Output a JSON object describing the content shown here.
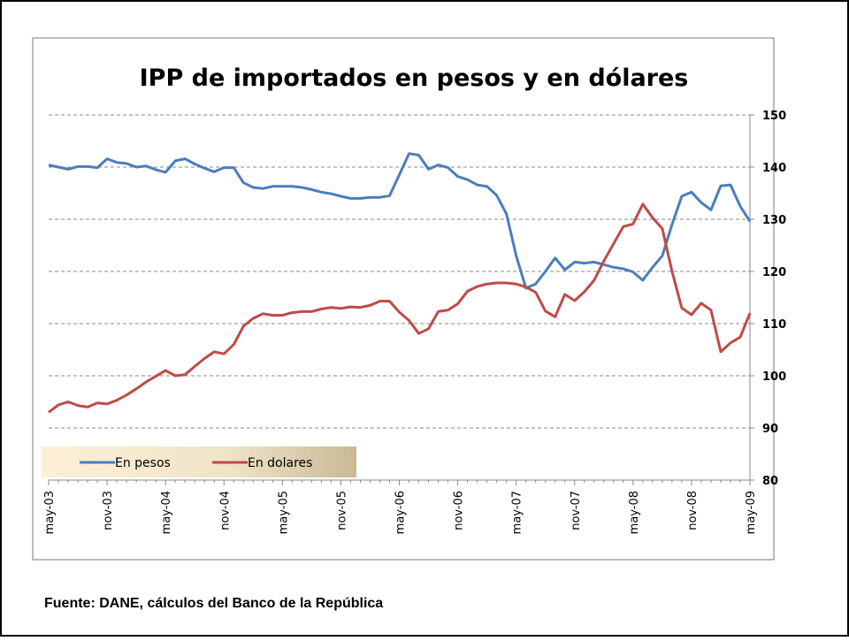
{
  "chart_data": {
    "type": "line",
    "title": "IPP de importados en pesos y en dólares",
    "source": "Fuente: DANE, cálculos del Banco de la República",
    "categories": [
      "may-03",
      null,
      null,
      null,
      null,
      null,
      "nov-03",
      null,
      null,
      null,
      null,
      null,
      "may-04",
      null,
      null,
      null,
      null,
      null,
      "nov-04",
      null,
      null,
      null,
      null,
      null,
      "may-05",
      null,
      null,
      null,
      null,
      null,
      "nov-05",
      null,
      null,
      null,
      null,
      null,
      "may-06",
      null,
      null,
      null,
      null,
      null,
      "nov-06",
      null,
      null,
      null,
      null,
      null,
      "may-07",
      null,
      null,
      null,
      null,
      null,
      "nov-07",
      null,
      null,
      null,
      null,
      null,
      "may-08",
      null,
      null,
      null,
      null,
      null,
      "nov-08",
      null,
      null,
      null,
      null,
      null,
      "may-09"
    ],
    "series": [
      {
        "name": "En pesos",
        "color": "#4a7ebb",
        "values": [
          140.4,
          140.0,
          139.6,
          140.1,
          140.1,
          139.9,
          141.6,
          140.9,
          140.7,
          140.0,
          140.2,
          139.5,
          139.0,
          141.2,
          141.6,
          140.6,
          139.8,
          139.1,
          139.9,
          139.9,
          137.0,
          136.1,
          135.9,
          136.3,
          136.3,
          136.3,
          136.1,
          135.7,
          135.2,
          134.9,
          134.4,
          134.0,
          134.0,
          134.2,
          134.2,
          134.5,
          138.5,
          142.6,
          142.3,
          139.6,
          140.4,
          139.9,
          138.2,
          137.6,
          136.6,
          136.3,
          134.6,
          131.0,
          123.0,
          116.8,
          117.6,
          120.0,
          122.6,
          120.3,
          121.8,
          121.6,
          121.8,
          121.3,
          120.8,
          120.5,
          119.9,
          118.3,
          120.8,
          123.0,
          129.0,
          134.4,
          135.2,
          133.2,
          131.8,
          136.4,
          136.6,
          132.5,
          129.6
        ]
      },
      {
        "name": "En dolares",
        "color": "#be4b48",
        "values": [
          93.0,
          94.4,
          95.0,
          94.3,
          94.0,
          94.8,
          94.6,
          95.3,
          96.3,
          97.5,
          98.8,
          99.9,
          101.0,
          100.0,
          100.2,
          101.8,
          103.3,
          104.6,
          104.2,
          106.0,
          109.5,
          111.0,
          111.9,
          111.6,
          111.6,
          112.1,
          112.3,
          112.3,
          112.8,
          113.1,
          112.9,
          113.2,
          113.1,
          113.5,
          114.3,
          114.3,
          112.2,
          110.6,
          108.1,
          109.0,
          112.3,
          112.6,
          113.8,
          116.2,
          117.1,
          117.6,
          117.8,
          117.8,
          117.6,
          117.0,
          116.0,
          112.4,
          111.3,
          115.6,
          114.4,
          116.1,
          118.3,
          122.0,
          125.3,
          128.6,
          129.1,
          132.9,
          130.3,
          128.2,
          120.0,
          113.0,
          111.7,
          113.9,
          112.6,
          104.6,
          106.3,
          107.4,
          112.0
        ]
      }
    ],
    "ylim": [
      80,
      150
    ],
    "yticks": [
      80,
      90,
      100,
      110,
      120,
      130,
      140,
      150
    ],
    "grid": true
  }
}
